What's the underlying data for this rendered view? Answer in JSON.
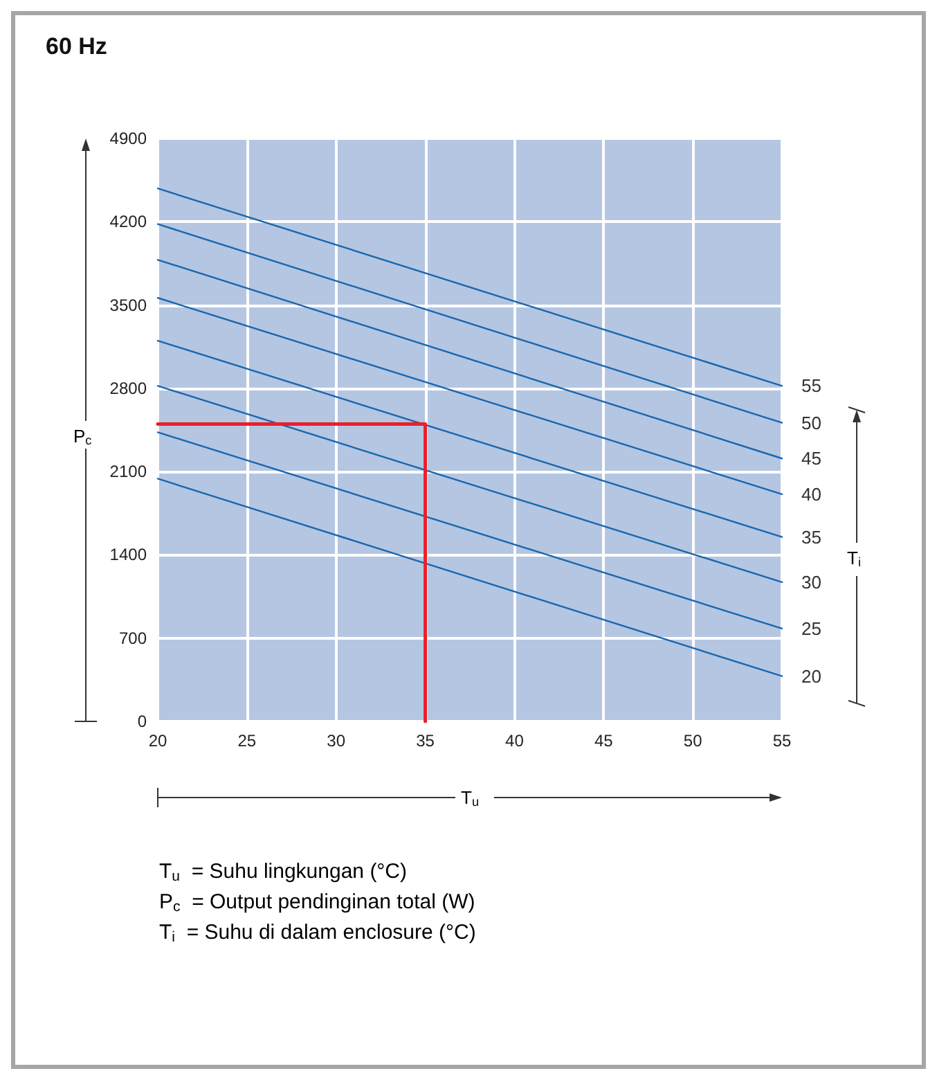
{
  "chart_data": {
    "type": "line",
    "title": "60 Hz",
    "xlabel": "T$_{u}$",
    "ylabel": "P$_{c}$",
    "y2label": "T$_{i}$",
    "xlim": [
      20,
      55
    ],
    "xticks": [
      20,
      25,
      30,
      35,
      40,
      45,
      50,
      55
    ],
    "ylim": [
      0,
      4900
    ],
    "yticks": [
      0,
      700,
      1400,
      2100,
      2800,
      3500,
      4200,
      4900
    ],
    "grid": true,
    "marker": "none",
    "line_style": "solid",
    "series": [
      {
        "name": "55",
        "color": "#1a66ad",
        "x": [
          20,
          55
        ],
        "values": [
          4480,
          2820
        ]
      },
      {
        "name": "50",
        "color": "#1a66ad",
        "x": [
          20,
          55
        ],
        "values": [
          4180,
          2510
        ]
      },
      {
        "name": "45",
        "color": "#1a66ad",
        "x": [
          20,
          55
        ],
        "values": [
          3880,
          2210
        ]
      },
      {
        "name": "40",
        "color": "#1a66ad",
        "x": [
          20,
          55
        ],
        "values": [
          3560,
          1910
        ]
      },
      {
        "name": "35",
        "color": "#1a66ad",
        "x": [
          20,
          55
        ],
        "values": [
          3200,
          1550
        ]
      },
      {
        "name": "30",
        "color": "#1a66ad",
        "x": [
          20,
          55
        ],
        "values": [
          2820,
          1170
        ]
      },
      {
        "name": "25",
        "color": "#1a66ad",
        "x": [
          20,
          55
        ],
        "values": [
          2430,
          780
        ]
      },
      {
        "name": "20",
        "color": "#1a66ad",
        "x": [
          20,
          55
        ],
        "values": [
          2040,
          380
        ]
      },
      {
        "color": "#e8202a",
        "x": [
          20,
          35,
          35
        ],
        "values": [
          2500,
          2500,
          0
        ]
      }
    ],
    "annotations": [
      "T$_{u}$ = Suhu lingkungan (°C)",
      "P$_{c}$ = Output pendinginan total (W)",
      "T$_{i}$ = Suhu di dalam enclosure (°C)"
    ]
  }
}
